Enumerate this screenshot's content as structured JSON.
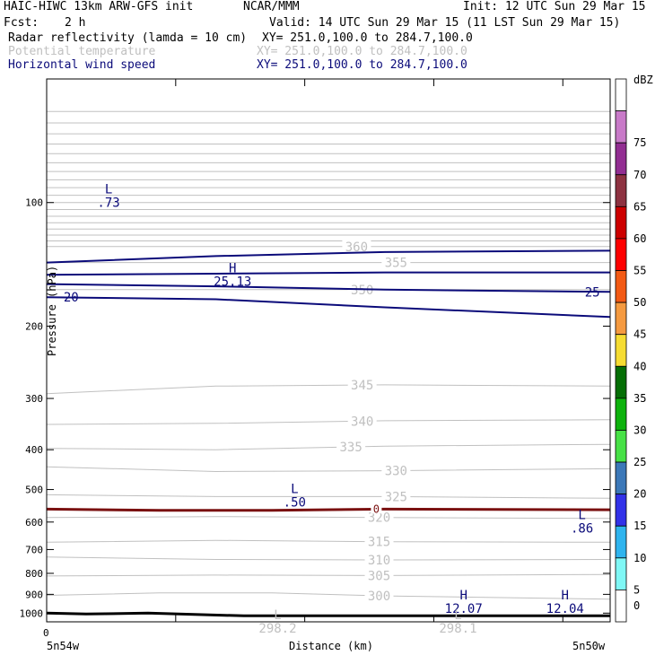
{
  "header": {
    "model": "HAIC-HIWC 13km ARW-GFS init",
    "org": "NCAR/MMM",
    "init": "Init: 12 UTC Sun 29 Mar 15",
    "fcst_label": "Fcst:",
    "fcst_value": "2 h",
    "valid": "Valid: 14 UTC Sun 29 Mar 15 (11 LST Sun 29 Mar 15)",
    "field1_name": "Radar reflectivity (lamda = 10 cm)",
    "field1_xy": "XY= 251.0,100.0 to 284.7,100.0",
    "field2_name": "Potential temperature",
    "field2_xy": "XY= 251.0,100.0 to 284.7,100.0",
    "field3_name": "Horizontal wind speed",
    "field3_xy": "XY= 251.0,100.0 to 284.7,100.0"
  },
  "colors": {
    "theta": "#c0c0c0",
    "wind": "#0b0b7a",
    "zero_line": "#7a1010",
    "terrain": "#000000"
  },
  "chart_data": {
    "type": "line",
    "title": "",
    "xlabel": "Distance (km)",
    "ylabel": "Pressure (hPa)",
    "x_start_label": "5n54w",
    "x_end_label": "5n50w",
    "x_tick_labels": [
      "0"
    ],
    "yaxis": "log-pressure",
    "ylim": [
      1050,
      50
    ],
    "yticks": [
      100,
      200,
      300,
      400,
      500,
      600,
      700,
      800,
      900,
      1000
    ],
    "grid": false,
    "colorbar": {
      "unit": "dBZ",
      "levels": [
        5,
        10,
        15,
        20,
        25,
        30,
        35,
        40,
        45,
        50,
        55,
        60,
        65,
        70,
        75
      ],
      "colors": [
        "#ffffff",
        "#7ff7f5",
        "#2fb4ee",
        "#3232e8",
        "#3c78b8",
        "#47e146",
        "#0db20c",
        "#046e05",
        "#f6dc32",
        "#f59a40",
        "#f35a14",
        "#fe0000",
        "#cd0000",
        "#8d3241",
        "#922e92",
        "#c87ac8",
        "#ffffff"
      ]
    },
    "theta_labels": [
      "360",
      "355",
      "350",
      "345",
      "340",
      "335",
      "330",
      "325",
      "320",
      "315",
      "310",
      "305",
      "300"
    ],
    "series": [
      {
        "label": "360",
        "x": [
          0,
          1
        ],
        "y": [
          128,
          128
        ]
      },
      {
        "label": "355",
        "x": [
          0,
          1
        ],
        "y": [
          140,
          140
        ]
      },
      {
        "label": "350",
        "x": [
          0,
          1
        ],
        "y": [
          163,
          163
        ]
      },
      {
        "label": "345",
        "x": [
          0,
          0.3,
          0.6,
          1
        ],
        "y": [
          292,
          280,
          278,
          280
        ]
      },
      {
        "label": "340",
        "x": [
          0,
          0.3,
          0.6,
          1
        ],
        "y": [
          347,
          345,
          340,
          338
        ]
      },
      {
        "label": "335",
        "x": [
          0,
          0.3,
          0.6,
          1
        ],
        "y": [
          397,
          400,
          392,
          388
        ]
      },
      {
        "label": "330",
        "x": [
          0,
          0.3,
          0.6,
          1
        ],
        "y": [
          440,
          452,
          450,
          445
        ]
      },
      {
        "label": "325",
        "x": [
          0,
          0.3,
          0.6,
          1
        ],
        "y": [
          515,
          520,
          520,
          525
        ]
      },
      {
        "label": "320",
        "x": [
          0,
          0.3,
          0.6,
          1
        ],
        "y": [
          585,
          582,
          585,
          588
        ]
      },
      {
        "label": "315",
        "x": [
          0,
          0.3,
          0.6,
          1
        ],
        "y": [
          672,
          665,
          670,
          672
        ]
      },
      {
        "label": "310",
        "x": [
          0,
          0.3,
          0.6,
          1
        ],
        "y": [
          730,
          740,
          742,
          740
        ]
      },
      {
        "label": "305",
        "x": [
          0,
          0.3,
          0.6,
          1
        ],
        "y": [
          812,
          808,
          810,
          805
        ]
      },
      {
        "label": "300",
        "x": [
          0,
          0.2,
          0.4,
          0.6,
          1
        ],
        "y": [
          905,
          893,
          893,
          908,
          925
        ]
      }
    ],
    "wind_labels": [
      "20",
      "25"
    ],
    "wind_contours": [
      {
        "label": "",
        "x": [
          0,
          0.3,
          0.6,
          1
        ],
        "y": [
          140,
          135,
          132,
          131
        ]
      },
      {
        "label": "",
        "x": [
          0,
          0.3,
          0.6,
          1
        ],
        "y": [
          150,
          149,
          148,
          148
        ]
      },
      {
        "label": "25",
        "x": [
          0,
          0.3,
          0.6,
          1
        ],
        "y": [
          158,
          160,
          163,
          165
        ]
      },
      {
        "label": "20",
        "x": [
          0,
          0.3,
          0.6,
          1
        ],
        "y": [
          170,
          172,
          180,
          190
        ]
      }
    ],
    "zero_reflectivity_label": "0",
    "zero_reflectivity_line": {
      "x": [
        0,
        0.2,
        0.4,
        0.6,
        1
      ],
      "y": [
        558,
        562,
        562,
        558,
        560
      ]
    },
    "terrain": {
      "x": [
        0,
        0.07,
        0.18,
        0.35,
        0.55,
        1
      ],
      "y": [
        1000,
        1005,
        1000,
        1015,
        1015,
        1015
      ]
    },
    "extrema": [
      {
        "kind": "L",
        "value": ".73",
        "x": 0.11,
        "y": 95
      },
      {
        "kind": "H",
        "value": "25.13",
        "x": 0.33,
        "y": 148
      },
      {
        "kind": "L",
        "value": ".50",
        "x": 0.44,
        "y": 510
      },
      {
        "kind": "L",
        "value": ".86",
        "x": 0.95,
        "y": 590
      },
      {
        "kind": "H",
        "value": "12.07",
        "x": 0.74,
        "y": 925
      },
      {
        "kind": "H",
        "value": "12.04",
        "x": 0.92,
        "y": 925
      },
      {
        "kind": "L",
        "value": "298.2",
        "x": 0.41,
        "y": 1035
      },
      {
        "kind": "L",
        "value": "298.1",
        "x": 0.73,
        "y": 1035
      }
    ]
  }
}
